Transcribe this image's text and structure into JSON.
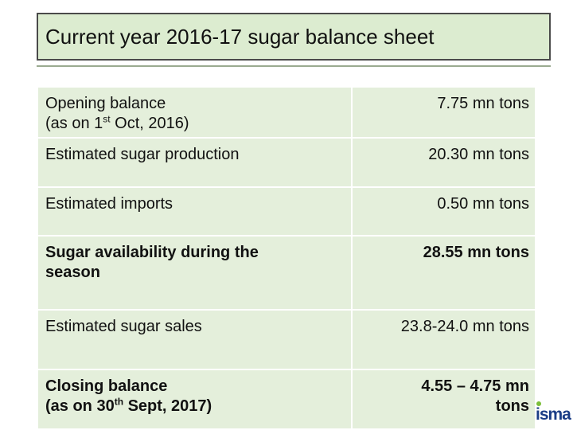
{
  "title": "Current year 2016-17 sugar balance sheet",
  "rows": [
    {
      "label": "Opening balance",
      "label2_pre": "(as on 1",
      "label2_sup": "st",
      "label2_post": " Oct, 2016)",
      "value": "7.75 mn tons"
    },
    {
      "label": "Estimated sugar production",
      "value": "20.30 mn tons"
    },
    {
      "label": "Estimated imports",
      "value": "0.50 mn tons"
    },
    {
      "label": "Sugar availability during the",
      "label_line2": "season",
      "value": "28.55 mn tons"
    },
    {
      "label": "Estimated sugar sales",
      "value": "23.8-24.0 mn tons"
    },
    {
      "label": "Closing balance",
      "label2_pre": "(as on 30",
      "label2_sup": "th",
      "label2_post": " Sept, 2017)",
      "value": "4.55 – 4.75 mn",
      "value_line2": "tons"
    }
  ],
  "logo": {
    "text": "isma"
  },
  "colors": {
    "title_bg": "#dcecd0",
    "cell_bg": "#e4efdb",
    "logo_blue": "#1b3d86",
    "logo_green": "#7cbf3a"
  }
}
